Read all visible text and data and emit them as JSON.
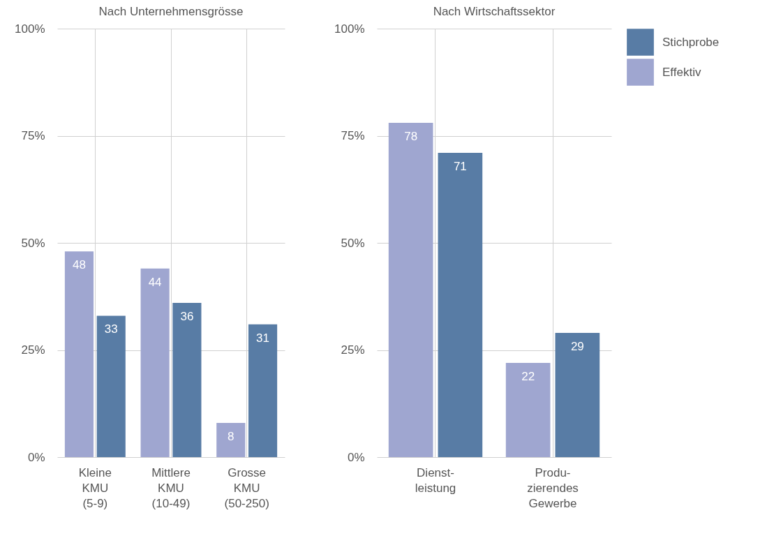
{
  "chart_data": [
    {
      "type": "bar",
      "title": "Nach Unternehmensgrösse",
      "categories": [
        "Kleine\nKMU\n(5-9)",
        "Mittlere\nKMU\n(10-49)",
        "Grosse\nKMU\n(50-250)"
      ],
      "series": [
        {
          "name": "Effektiv",
          "color": "#9fa6d0",
          "values": [
            48,
            44,
            8
          ]
        },
        {
          "name": "Stichprobe",
          "color": "#587ca5",
          "values": [
            33,
            36,
            31
          ]
        }
      ],
      "ylim": [
        0,
        100
      ],
      "yticks": [
        {
          "value": 0,
          "label": "0%"
        },
        {
          "value": 25,
          "label": "25%"
        },
        {
          "value": 50,
          "label": "50%"
        },
        {
          "value": 75,
          "label": "75%"
        },
        {
          "value": 100,
          "label": "100%"
        }
      ],
      "grid": true,
      "data_labels": true,
      "legend": "right"
    },
    {
      "type": "bar",
      "title": "Nach Wirtschaftssektor",
      "categories": [
        "Dienst-\nleistung",
        "Produ-\nzierendes\nGewerbe"
      ],
      "series": [
        {
          "name": "Effektiv",
          "color": "#9fa6d0",
          "values": [
            78,
            22
          ]
        },
        {
          "name": "Stichprobe",
          "color": "#587ca5",
          "values": [
            71,
            29
          ]
        }
      ],
      "ylim": [
        0,
        100
      ],
      "yticks": [
        {
          "value": 0,
          "label": "0%"
        },
        {
          "value": 25,
          "label": "25%"
        },
        {
          "value": 50,
          "label": "50%"
        },
        {
          "value": 75,
          "label": "75%"
        },
        {
          "value": 100,
          "label": "100%"
        }
      ],
      "grid": true,
      "data_labels": true,
      "legend": "right"
    }
  ]
}
